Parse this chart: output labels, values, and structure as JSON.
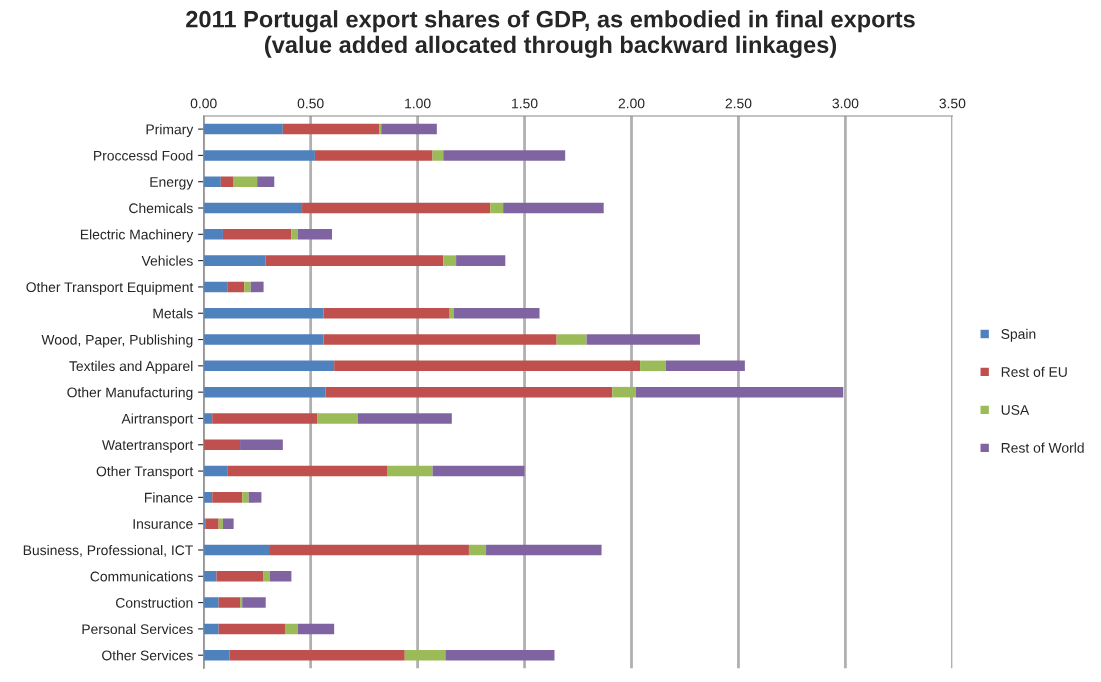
{
  "chart_data": {
    "type": "bar",
    "orientation": "horizontal",
    "stacked": true,
    "title": "2011 Portugal export shares of GDP, as embodied in final exports\n(value added allocated through backward linkages)",
    "categories": [
      "Primary",
      "Proccessd Food",
      "Energy",
      "Chemicals",
      "Electric Machinery",
      "Vehicles",
      "Other Transport Equipment",
      "Metals",
      "Wood, Paper, Publishing",
      "Textiles and Apparel",
      "Other Manufacturing",
      "Airtransport",
      "Watertransport",
      "Other Transport",
      "Finance",
      "Insurance",
      "Business, Professional, ICT",
      "Communications",
      "Construction",
      "Personal Services",
      "Other Services"
    ],
    "series": [
      {
        "name": "Spain",
        "color": "#4f81bd",
        "values": [
          0.37,
          0.52,
          0.08,
          0.46,
          0.09,
          0.29,
          0.11,
          0.56,
          0.56,
          0.61,
          0.57,
          0.04,
          0,
          0.11,
          0.04,
          0.01,
          0.31,
          0.06,
          0.07,
          0.07,
          0.12
        ]
      },
      {
        "name": "Rest of EU",
        "color": "#c0504d",
        "values": [
          0.45,
          0.55,
          0.06,
          0.88,
          0.32,
          0.83,
          0.08,
          0.59,
          1.09,
          1.43,
          1.34,
          0.49,
          0.17,
          0.75,
          0.14,
          0.06,
          0.93,
          0.22,
          0.1,
          0.31,
          0.82
        ]
      },
      {
        "name": "USA",
        "color": "#9bbb59",
        "values": [
          0.01,
          0.05,
          0.11,
          0.06,
          0.03,
          0.06,
          0.03,
          0.02,
          0.14,
          0.12,
          0.11,
          0.19,
          0,
          0.21,
          0.03,
          0.02,
          0.08,
          0.03,
          0.01,
          0.06,
          0.19
        ]
      },
      {
        "name": "Rest of World",
        "color": "#8064a2",
        "values": [
          0.26,
          0.57,
          0.08,
          0.47,
          0.16,
          0.23,
          0.06,
          0.4,
          0.53,
          0.37,
          0.97,
          0.44,
          0.2,
          0.43,
          0.06,
          0.05,
          0.54,
          0.1,
          0.11,
          0.17,
          0.51
        ]
      }
    ],
    "xlim": [
      0,
      3.5
    ],
    "xticks": [
      {
        "value": 0,
        "label": "0.00"
      },
      {
        "value": 0.5,
        "label": "0.50"
      },
      {
        "value": 1,
        "label": "1.00"
      },
      {
        "value": 1.5,
        "label": "1.50"
      },
      {
        "value": 2,
        "label": "2.00"
      },
      {
        "value": 2.5,
        "label": "2.50"
      },
      {
        "value": 3,
        "label": "3.00"
      },
      {
        "value": 3.5,
        "label": "3.50"
      }
    ],
    "grid": "x",
    "legend": "right"
  }
}
